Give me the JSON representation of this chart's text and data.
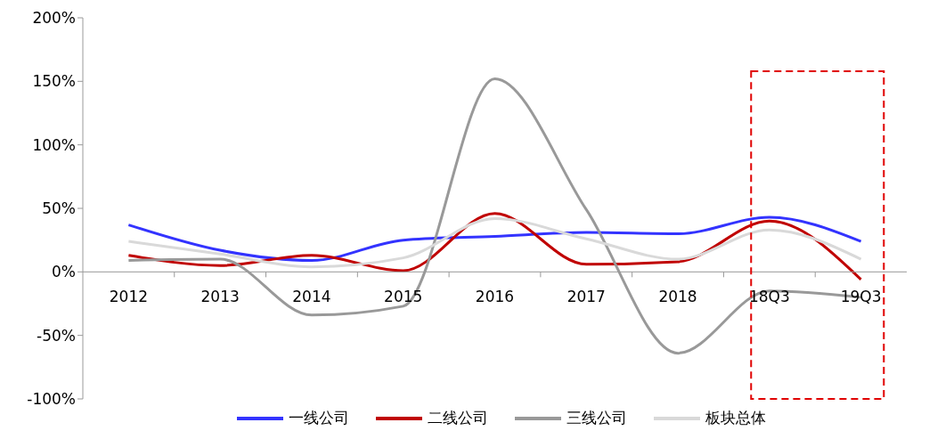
{
  "chart_data": {
    "type": "line",
    "categories": [
      "2012",
      "2013",
      "2014",
      "2015",
      "2016",
      "2017",
      "2018",
      "18Q3",
      "19Q3"
    ],
    "series": [
      {
        "name": "一线公司",
        "color": "#3333ff",
        "values": [
          37,
          17,
          9,
          25,
          28,
          31,
          30,
          43,
          24
        ]
      },
      {
        "name": "二线公司",
        "color": "#c00000",
        "values": [
          13,
          5,
          13,
          1,
          46,
          6,
          8,
          40,
          -6
        ]
      },
      {
        "name": "三线公司",
        "color": "#999999",
        "values": [
          9,
          10,
          -34,
          -27,
          152,
          49,
          -64,
          -15,
          -20
        ]
      },
      {
        "name": "板块总体",
        "color": "#d9d9d9",
        "values": [
          24,
          14,
          4,
          11,
          42,
          26,
          10,
          33,
          10
        ]
      }
    ],
    "ylim": [
      -100,
      200
    ],
    "yticks": [
      {
        "value": -100,
        "label": "-100%"
      },
      {
        "value": -50,
        "label": "-50%"
      },
      {
        "value": 0,
        "label": "0%"
      },
      {
        "value": 50,
        "label": "50%"
      },
      {
        "value": 100,
        "label": "100%"
      },
      {
        "value": 150,
        "label": "150%"
      },
      {
        "value": 200,
        "label": "200%"
      }
    ],
    "grid": false,
    "legend": "bottom",
    "marker": "none",
    "line_style": "solid"
  }
}
